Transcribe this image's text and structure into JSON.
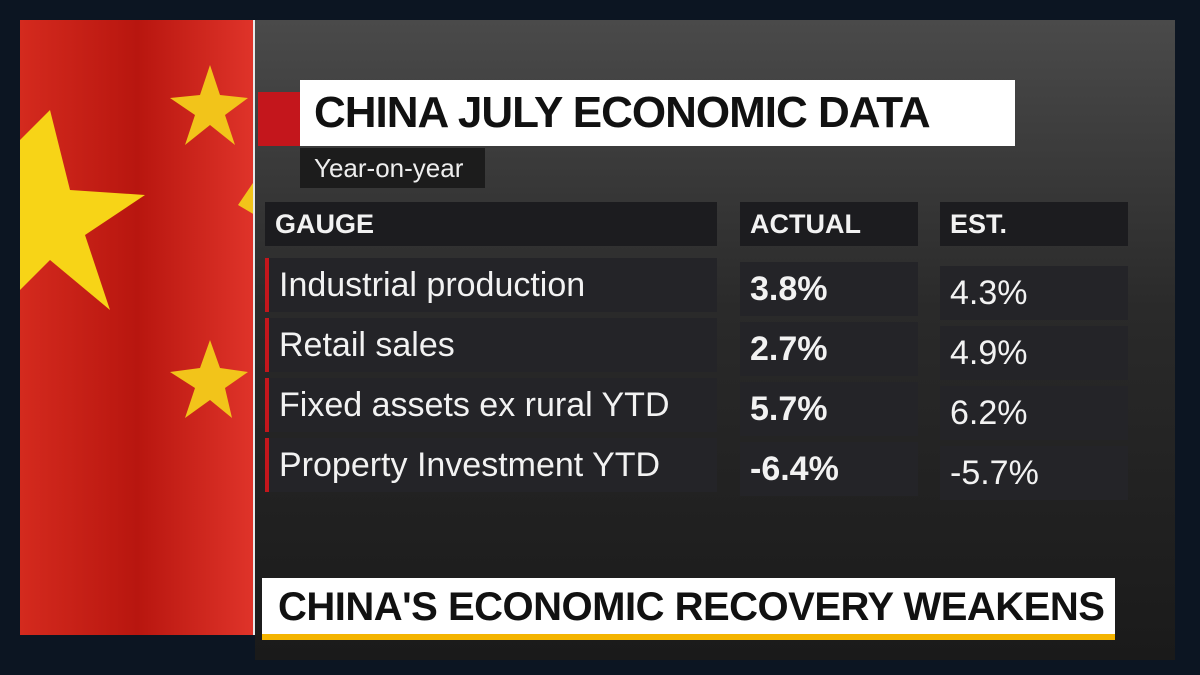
{
  "header": {
    "title": "CHINA JULY ECONOMIC DATA",
    "subtitle": "Year-on-year"
  },
  "table": {
    "columns": [
      "GAUGE",
      "ACTUAL",
      "EST."
    ],
    "rows": [
      [
        "Industrial production",
        "3.8%",
        "4.3%"
      ],
      [
        "Retail sales",
        "2.7%",
        "4.9%"
      ],
      [
        "Fixed assets ex rural YTD",
        "5.7%",
        "6.2%"
      ],
      [
        "Property Investment YTD",
        "-6.4%",
        "-5.7%"
      ]
    ]
  },
  "headline": "CHINA'S ECONOMIC RECOVERY WEAKENS"
}
